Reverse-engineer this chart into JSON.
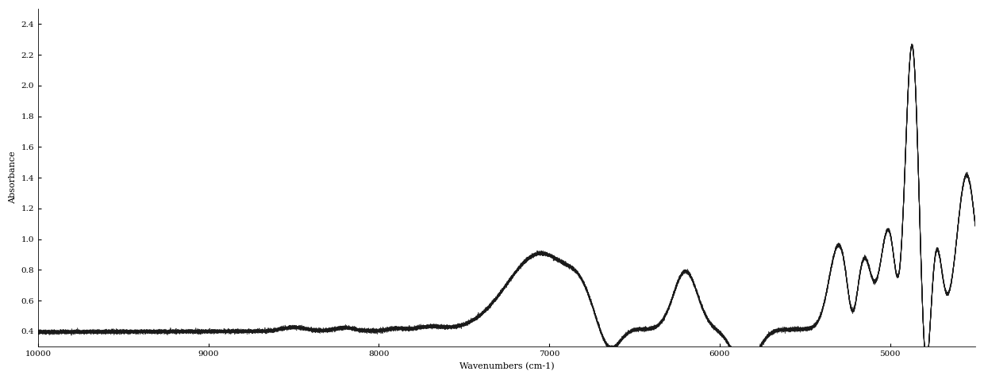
{
  "title": "",
  "xlabel": "Wavenumbers (cm-1)",
  "ylabel": "Absorbance",
  "xlim": [
    10000,
    4500
  ],
  "ylim": [
    0.3,
    2.5
  ],
  "xticks": [
    10000,
    9000,
    8000,
    7000,
    6000,
    5000
  ],
  "yticks": [
    0.4,
    0.6,
    0.8,
    1.0,
    1.2,
    1.4,
    1.6,
    1.8,
    2.0,
    2.2,
    2.4
  ],
  "line_color": "#1a1a1a",
  "line_width": 0.7,
  "background_color": "#ffffff",
  "num_spectra": 10
}
